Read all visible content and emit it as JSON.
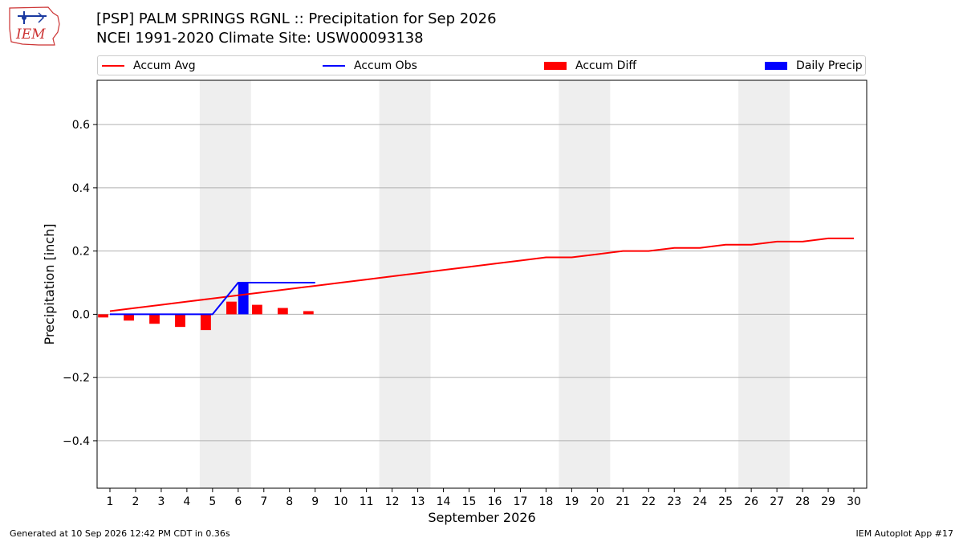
{
  "logo": {
    "text": "IEM"
  },
  "header": {
    "title": "[PSP] PALM SPRINGS RGNL :: Precipitation for Sep 2026",
    "subtitle": "NCEI 1991-2020 Climate Site: USW00093138"
  },
  "legend": {
    "items": [
      "Accum Avg",
      "Accum Obs",
      "Accum Diff",
      "Daily Precip"
    ]
  },
  "footer": {
    "left": "Generated at 10 Sep 2026 12:42 PM CDT in 0.36s",
    "right": "IEM Autoplot App #17"
  },
  "colors": {
    "accum_avg": "#ff0000",
    "accum_obs": "#0000ff",
    "accum_diff": "#ff0000",
    "daily_precip": "#0000ff",
    "weekend_shade": "#eeeeee",
    "grid": "#b0b0b0"
  },
  "chart_data": {
    "type": "bar",
    "title": "[PSP] PALM SPRINGS RGNL :: Precipitation for Sep 2026",
    "xlabel": "September 2026",
    "ylabel": "Precipitation [inch]",
    "xlim": [
      0.5,
      30.5
    ],
    "ylim": [
      -0.55,
      0.74
    ],
    "yticks": [
      -0.4,
      -0.2,
      0.0,
      0.2,
      0.4,
      0.6
    ],
    "ytick_labels": [
      "−0.4",
      "−0.2",
      "0.0",
      "0.2",
      "0.4",
      "0.6"
    ],
    "xticks": [
      1,
      2,
      3,
      4,
      5,
      6,
      7,
      8,
      9,
      10,
      11,
      12,
      13,
      14,
      15,
      16,
      17,
      18,
      19,
      20,
      21,
      22,
      23,
      24,
      25,
      26,
      27,
      28,
      29,
      30
    ],
    "grid": true,
    "legend_position": "top",
    "weekend_shading": [
      [
        5,
        6
      ],
      [
        12,
        13
      ],
      [
        19,
        20
      ],
      [
        26,
        27
      ]
    ],
    "series": [
      {
        "name": "Accum Avg",
        "kind": "line",
        "x": [
          1,
          2,
          3,
          4,
          5,
          6,
          7,
          8,
          9,
          10,
          11,
          12,
          13,
          14,
          15,
          16,
          17,
          18,
          19,
          20,
          21,
          22,
          23,
          24,
          25,
          26,
          27,
          28,
          29,
          30
        ],
        "values": [
          0.01,
          0.02,
          0.03,
          0.04,
          0.05,
          0.06,
          0.07,
          0.08,
          0.09,
          0.1,
          0.11,
          0.12,
          0.13,
          0.14,
          0.15,
          0.16,
          0.17,
          0.18,
          0.18,
          0.19,
          0.2,
          0.2,
          0.21,
          0.21,
          0.22,
          0.22,
          0.23,
          0.23,
          0.24,
          0.24
        ]
      },
      {
        "name": "Accum Obs",
        "kind": "line",
        "x": [
          1,
          2,
          3,
          4,
          5,
          6,
          7,
          8,
          9
        ],
        "values": [
          0.0,
          0.0,
          0.0,
          0.0,
          0.0,
          0.1,
          0.1,
          0.1,
          0.1
        ]
      },
      {
        "name": "Accum Diff",
        "kind": "bar",
        "x": [
          1,
          2,
          3,
          4,
          5,
          6,
          7,
          8,
          9
        ],
        "values": [
          -0.01,
          -0.02,
          -0.03,
          -0.04,
          -0.05,
          0.04,
          0.03,
          0.02,
          0.01
        ]
      },
      {
        "name": "Daily Precip",
        "kind": "bar",
        "x": [
          1,
          2,
          3,
          4,
          5,
          6,
          7,
          8,
          9
        ],
        "values": [
          0.0,
          0.0,
          0.0,
          0.0,
          0.0,
          0.1,
          0.0,
          0.0,
          0.0
        ]
      }
    ]
  }
}
